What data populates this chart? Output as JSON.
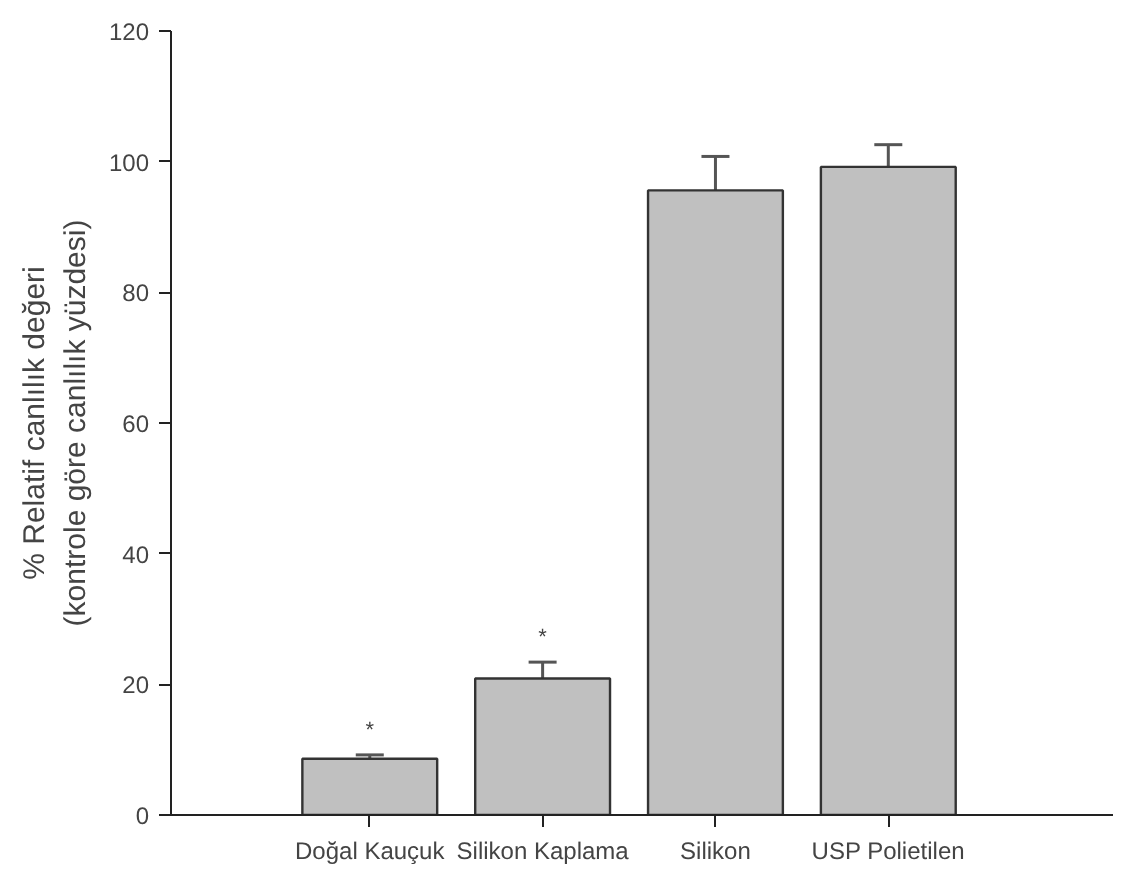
{
  "chart_data": {
    "type": "bar",
    "ylabel": "% Relatif canlılık değeri\n(kontrole göre canlılık yüzdesi)",
    "categories": [
      "Doğal Kauçuk",
      "Silikon Kaplama",
      "Silikon",
      "USP Polietilen"
    ],
    "values": [
      8.6,
      20.9,
      95.6,
      99.2
    ],
    "color": "#c0c0c0",
    "errors": [
      [
        8.6,
        9.2
      ],
      [
        20.9,
        23.4
      ],
      [
        95.6,
        100.8
      ],
      [
        99.2,
        102.6
      ]
    ],
    "annotations": [
      "*",
      "*"
    ],
    "ylim": [
      0,
      120
    ],
    "yticks": [
      0,
      20,
      40,
      60,
      80,
      100,
      120
    ],
    "grid": false
  }
}
